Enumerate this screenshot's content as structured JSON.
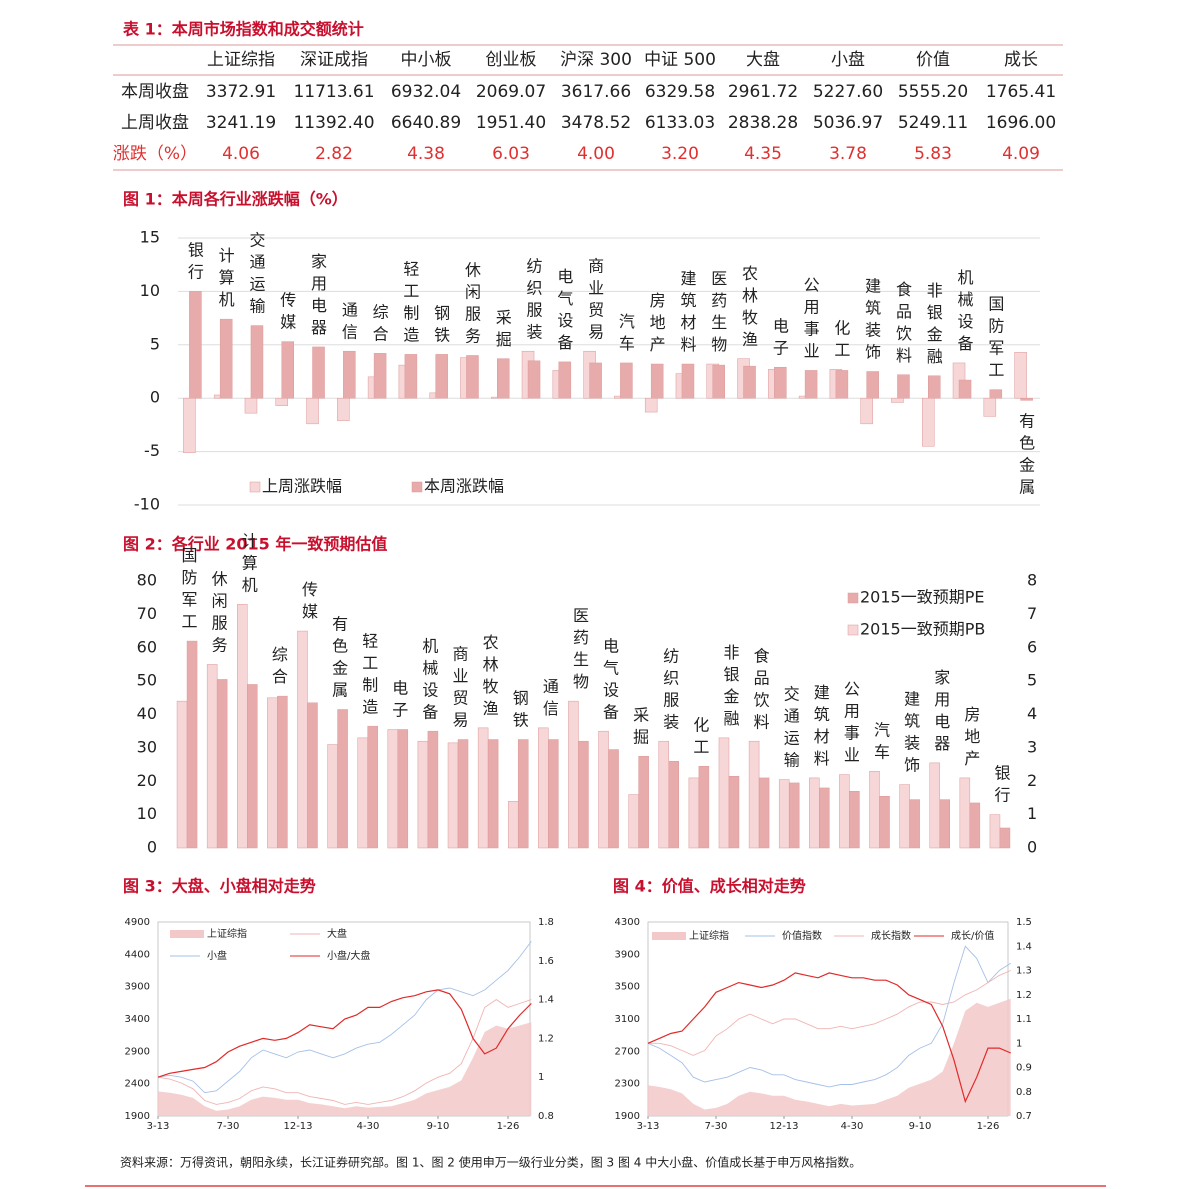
{
  "table": {
    "title": "表 1：本周市场指数和成交额统计",
    "header": [
      "上证综指",
      "深证成指",
      "中小板",
      "创业板",
      "沪深 300",
      "中证 500",
      "大盘",
      "小盘",
      "价值",
      "成长"
    ],
    "rows": [
      {
        "label": "本周收盘",
        "values": [
          "3372.91",
          "11713.61",
          "6932.04",
          "2069.07",
          "3617.66",
          "6329.58",
          "2961.72",
          "5227.60",
          "5555.20",
          "1765.41"
        ]
      },
      {
        "label": "上周收盘",
        "values": [
          "3241.19",
          "11392.40",
          "6640.89",
          "1951.40",
          "3478.52",
          "6133.03",
          "2838.28",
          "5036.97",
          "5249.11",
          "1696.00"
        ]
      },
      {
        "label": "涨跌（%）",
        "values": [
          "4.06",
          "2.82",
          "4.38",
          "6.03",
          "4.00",
          "3.20",
          "4.35",
          "3.78",
          "5.83",
          "4.09"
        ]
      }
    ]
  },
  "chart_data": [
    {
      "type": "bar",
      "title": "图 1：本周各行业涨跌幅（%）",
      "categories": [
        "银行",
        "计算机",
        "交通运输",
        "传媒",
        "家用电器",
        "通信",
        "综合",
        "轻工制造",
        "钢铁",
        "休闲服务",
        "采掘",
        "纺织服装",
        "电气设备",
        "商业贸易",
        "汽车",
        "房地产",
        "建筑材料",
        "医药生物",
        "农林牧渔",
        "电子",
        "公用事业",
        "化工",
        "建筑装饰",
        "食品饮料",
        "非银金融",
        "机械设备",
        "国防军工",
        "有色金属"
      ],
      "series": [
        {
          "name": "上周涨跌幅",
          "color": "#f6d6d6",
          "values": [
            -5.1,
            0.3,
            -1.4,
            -0.7,
            -2.4,
            -2.1,
            2.0,
            3.1,
            0.5,
            3.8,
            0.1,
            4.4,
            2.6,
            4.4,
            0.2,
            -1.3,
            2.3,
            3.2,
            3.7,
            2.7,
            0.2,
            2.7,
            -2.4,
            -0.4,
            -4.5,
            3.3,
            -1.7,
            4.3
          ]
        },
        {
          "name": "本周涨跌幅",
          "color": "#e8abab",
          "values": [
            10.0,
            7.4,
            6.8,
            5.3,
            4.8,
            4.4,
            4.2,
            4.1,
            4.1,
            4.0,
            3.7,
            3.5,
            3.4,
            3.3,
            3.3,
            3.2,
            3.2,
            3.1,
            3.0,
            2.9,
            2.6,
            2.6,
            2.5,
            2.2,
            2.1,
            1.7,
            0.8,
            -0.2
          ]
        }
      ],
      "ylim": [
        -10,
        15
      ],
      "yticks": [
        -10,
        -5,
        0,
        5,
        10,
        15
      ],
      "grid": true
    },
    {
      "type": "bar",
      "title": "图 2：各行业 2015 年一致预期估值",
      "categories": [
        "国防军工",
        "休闲服务",
        "计算机",
        "综合",
        "传媒",
        "有色金属",
        "轻工制造",
        "电子",
        "机械设备",
        "商业贸易",
        "农林牧渔",
        "钢铁",
        "通信",
        "医药生物",
        "电气设备",
        "采掘",
        "纺织服装",
        "化工",
        "非银金融",
        "食品饮料",
        "交通运输",
        "建筑材料",
        "公用事业",
        "汽车",
        "建筑装饰",
        "家用电器",
        "房地产",
        "银行"
      ],
      "series": [
        {
          "name": "2015一致预期PE",
          "color": "#e8abab",
          "values": [
            62,
            50.5,
            49,
            45.5,
            43.5,
            41.5,
            36.5,
            35.5,
            35,
            32.5,
            32.5,
            32.5,
            32.5,
            32,
            29.5,
            27.5,
            26,
            24.5,
            21.5,
            21,
            19.5,
            18,
            17,
            15.5,
            14.5,
            14.5,
            13.5,
            6
          ]
        },
        {
          "name": "2015一致预期PB",
          "color": "#f6d6d6",
          "axis": "y2",
          "values": [
            4.4,
            5.5,
            7.3,
            4.5,
            6.5,
            3.1,
            3.3,
            3.55,
            3.2,
            3.15,
            3.6,
            1.4,
            3.6,
            4.4,
            3.5,
            1.6,
            3.2,
            2.1,
            3.3,
            3.2,
            2.05,
            2.1,
            2.2,
            2.3,
            1.9,
            2.55,
            2.1,
            1.0
          ]
        }
      ],
      "ylim": [
        0,
        80
      ],
      "yticks": [
        0,
        10,
        20,
        30,
        40,
        50,
        60,
        70,
        80
      ],
      "y2lim": [
        0,
        8
      ],
      "y2ticks": [
        0,
        1,
        2,
        3,
        4,
        5,
        6,
        7,
        8
      ]
    },
    {
      "type": "line",
      "title": "图 3：大盘、小盘相对走势",
      "categories": [
        "3-13",
        null,
        null,
        null,
        null,
        null,
        "7-30",
        null,
        null,
        null,
        null,
        null,
        "12-13",
        null,
        null,
        null,
        null,
        null,
        "4-30",
        null,
        null,
        null,
        null,
        null,
        "9-10",
        null,
        null,
        null,
        null,
        null,
        "1-26",
        null,
        null
      ],
      "series": [
        {
          "name": "上证综指",
          "color": "#f3c8c8",
          "area": true,
          "values": [
            2280,
            2260,
            2230,
            2180,
            2050,
            1980,
            2000,
            2050,
            2150,
            2200,
            2180,
            2150,
            2150,
            2100,
            2080,
            2050,
            2020,
            2050,
            2030,
            2040,
            2050,
            2100,
            2150,
            2250,
            2300,
            2350,
            2450,
            2800,
            3200,
            3300,
            3250,
            3300,
            3350
          ]
        },
        {
          "name": "大盘",
          "color": "#f0b4b4",
          "axis": "y2",
          "values": [
            1.0,
            0.99,
            0.97,
            0.94,
            0.88,
            0.86,
            0.87,
            0.89,
            0.93,
            0.95,
            0.94,
            0.92,
            0.92,
            0.9,
            0.89,
            0.88,
            0.86,
            0.87,
            0.86,
            0.87,
            0.88,
            0.9,
            0.93,
            0.97,
            1.0,
            1.02,
            1.07,
            1.2,
            1.36,
            1.4,
            1.36,
            1.38,
            1.4
          ]
        },
        {
          "name": "小盘",
          "color": "#a6c0e8",
          "axis": "y2",
          "values": [
            1.0,
            1.01,
            1.0,
            0.98,
            0.92,
            0.93,
            0.98,
            1.03,
            1.1,
            1.14,
            1.12,
            1.1,
            1.13,
            1.14,
            1.12,
            1.1,
            1.12,
            1.15,
            1.17,
            1.18,
            1.22,
            1.27,
            1.32,
            1.4,
            1.45,
            1.46,
            1.44,
            1.42,
            1.45,
            1.5,
            1.55,
            1.62,
            1.7
          ]
        },
        {
          "name": "小盘/大盘",
          "color": "#e02a2a",
          "axis": "y2",
          "values": [
            1.0,
            1.02,
            1.03,
            1.04,
            1.05,
            1.08,
            1.13,
            1.16,
            1.18,
            1.2,
            1.19,
            1.2,
            1.23,
            1.27,
            1.26,
            1.25,
            1.3,
            1.32,
            1.36,
            1.36,
            1.39,
            1.41,
            1.42,
            1.44,
            1.45,
            1.43,
            1.35,
            1.2,
            1.12,
            1.15,
            1.25,
            1.32,
            1.38
          ]
        }
      ],
      "ylim": [
        1900,
        4900
      ],
      "yticks": [
        1900,
        2400,
        2900,
        3400,
        3900,
        4400,
        4900
      ],
      "y2lim": [
        0.8,
        1.8
      ],
      "y2ticks": [
        0.8,
        1,
        1.2,
        1.4,
        1.6,
        1.8
      ]
    },
    {
      "type": "line",
      "title": "图 4：价值、成长相对走势",
      "categories": [
        "3-13",
        null,
        null,
        null,
        null,
        null,
        "7-30",
        null,
        null,
        null,
        null,
        null,
        "12-13",
        null,
        null,
        null,
        null,
        null,
        "4-30",
        null,
        null,
        null,
        null,
        null,
        "9-10",
        null,
        null,
        null,
        null,
        null,
        "1-26",
        null,
        null
      ],
      "series": [
        {
          "name": "上证综指",
          "color": "#f3c8c8",
          "area": true,
          "values": [
            2280,
            2260,
            2230,
            2180,
            2050,
            1980,
            2000,
            2050,
            2150,
            2200,
            2180,
            2150,
            2150,
            2100,
            2080,
            2050,
            2020,
            2050,
            2030,
            2040,
            2050,
            2100,
            2150,
            2250,
            2300,
            2350,
            2450,
            2800,
            3200,
            3300,
            3250,
            3300,
            3350
          ]
        },
        {
          "name": "价值指数",
          "color": "#a6c0e8",
          "axis": "y2",
          "values": [
            1.0,
            0.98,
            0.95,
            0.92,
            0.86,
            0.84,
            0.85,
            0.86,
            0.88,
            0.9,
            0.89,
            0.87,
            0.87,
            0.85,
            0.84,
            0.83,
            0.82,
            0.83,
            0.83,
            0.84,
            0.85,
            0.87,
            0.9,
            0.95,
            0.98,
            1.0,
            1.08,
            1.25,
            1.4,
            1.35,
            1.25,
            1.3,
            1.33
          ]
        },
        {
          "name": "成长指数",
          "color": "#f0b4b4",
          "axis": "y2",
          "values": [
            1.0,
            1.0,
            0.99,
            0.97,
            0.95,
            0.97,
            1.03,
            1.06,
            1.1,
            1.12,
            1.1,
            1.08,
            1.1,
            1.1,
            1.08,
            1.06,
            1.06,
            1.07,
            1.06,
            1.07,
            1.08,
            1.1,
            1.12,
            1.15,
            1.17,
            1.17,
            1.16,
            1.17,
            1.2,
            1.22,
            1.25,
            1.28,
            1.3
          ]
        },
        {
          "name": "成长/价值",
          "color": "#e02a2a",
          "axis": "y2",
          "values": [
            1.0,
            1.02,
            1.04,
            1.05,
            1.1,
            1.15,
            1.21,
            1.23,
            1.25,
            1.24,
            1.23,
            1.24,
            1.26,
            1.29,
            1.28,
            1.27,
            1.29,
            1.28,
            1.27,
            1.27,
            1.26,
            1.26,
            1.24,
            1.2,
            1.18,
            1.16,
            1.07,
            0.93,
            0.76,
            0.86,
            0.98,
            0.98,
            0.96
          ]
        }
      ],
      "ylim": [
        1900,
        4300
      ],
      "yticks": [
        1900,
        2300,
        2700,
        3100,
        3500,
        3900,
        4300
      ],
      "y2lim": [
        0.7,
        1.5
      ],
      "y2ticks": [
        0.7,
        0.8,
        0.9,
        1,
        1.1,
        1.2,
        1.3,
        1.4,
        1.5
      ]
    }
  ],
  "source": "资料来源：万得资讯，朝阳永续，长江证券研究部。图 1、图 2 使用申万一级行业分类，图 3 图 4 中大小盘、价值成长基于申万风格指数。"
}
